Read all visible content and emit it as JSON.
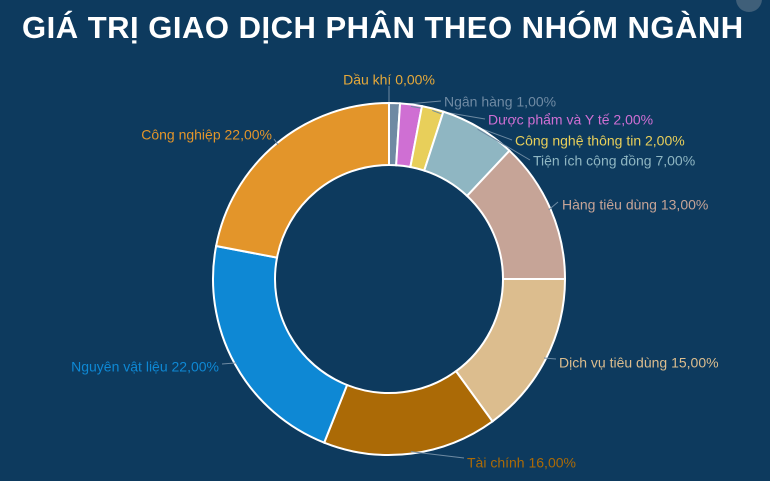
{
  "title": "GIÁ TRỊ GIAO DỊCH PHÂN THEO NHÓM NGÀNH",
  "chart_data": {
    "type": "pie",
    "donut": true,
    "title": "GIÁ TRỊ GIAO DỊCH PHÂN THEO NHÓM NGÀNH",
    "legend": "none",
    "unit": "%",
    "slices": [
      {
        "label": "Dầu khí 0,00%",
        "name": "Dầu khí",
        "value": 0.0,
        "color": "#e6a93a"
      },
      {
        "label": "Ngân hàng 1,00%",
        "name": "Ngân hàng",
        "value": 1.0,
        "color": "#6f8aa3"
      },
      {
        "label": "Dược phẩm và Y tế 2,00%",
        "name": "Dược phẩm và Y tế",
        "value": 2.0,
        "color": "#cf6fd3"
      },
      {
        "label": "Công nghệ thông tin 2,00%",
        "name": "Công nghệ thông tin",
        "value": 2.0,
        "color": "#e8cf5a"
      },
      {
        "label": "Tiện ích cộng đồng 7,00%",
        "name": "Tiện ích cộng đồng",
        "value": 7.0,
        "color": "#8fb6c2"
      },
      {
        "label": "Hàng tiêu dùng 13,00%",
        "name": "Hàng tiêu dùng",
        "value": 13.0,
        "color": "#c6a497"
      },
      {
        "label": "Dịch vụ tiêu dùng 15,00%",
        "name": "Dịch vụ tiêu dùng",
        "value": 15.0,
        "color": "#dcbd8e"
      },
      {
        "label": "Tài chính 16,00%",
        "name": "Tài chính",
        "value": 16.0,
        "color": "#ab6a06"
      },
      {
        "label": "Nguyên vật liệu 22,00%",
        "name": "Nguyên vật liệu",
        "value": 22.0,
        "color": "#0e88d4"
      },
      {
        "label": "Công nghiệp 22,00%",
        "name": "Công nghiệp",
        "value": 22.0,
        "color": "#e3952a"
      }
    ]
  }
}
